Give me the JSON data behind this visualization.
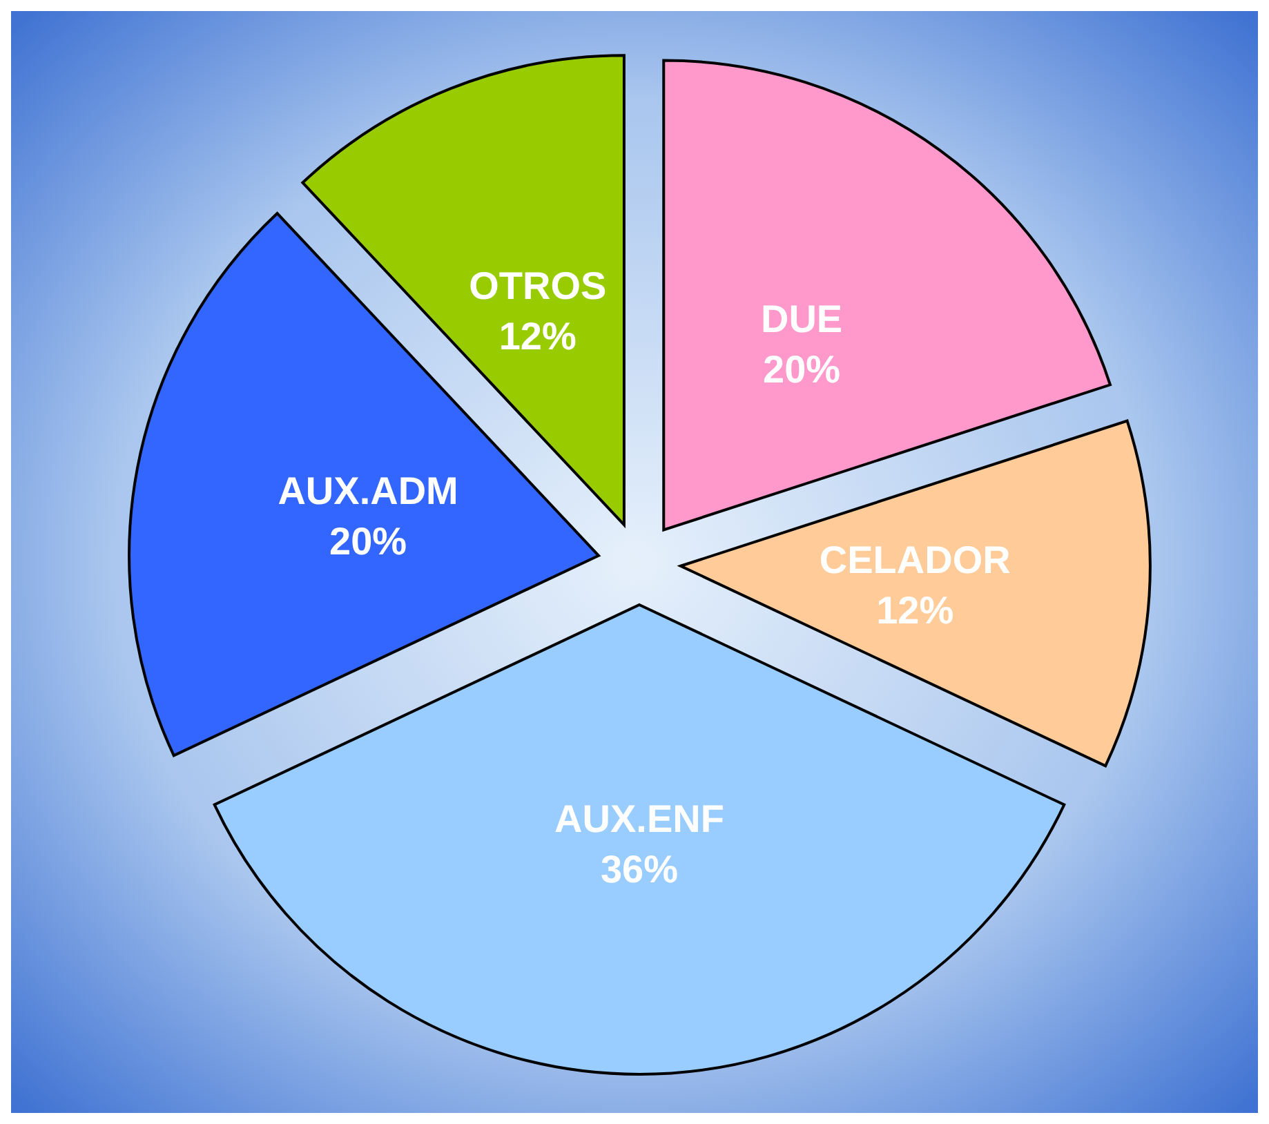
{
  "chart_data": {
    "type": "pie",
    "categories": [
      "DUE",
      "CELADOR",
      "AUX.ENF",
      "AUX.ADM",
      "OTROS"
    ],
    "values": [
      20,
      12,
      36,
      20,
      12
    ],
    "colors": [
      "#ff99cc",
      "#ffcc99",
      "#99ccff",
      "#3366ff",
      "#99cc00"
    ],
    "value_labels": [
      "20%",
      "12%",
      "36%",
      "20%",
      "12%"
    ]
  }
}
